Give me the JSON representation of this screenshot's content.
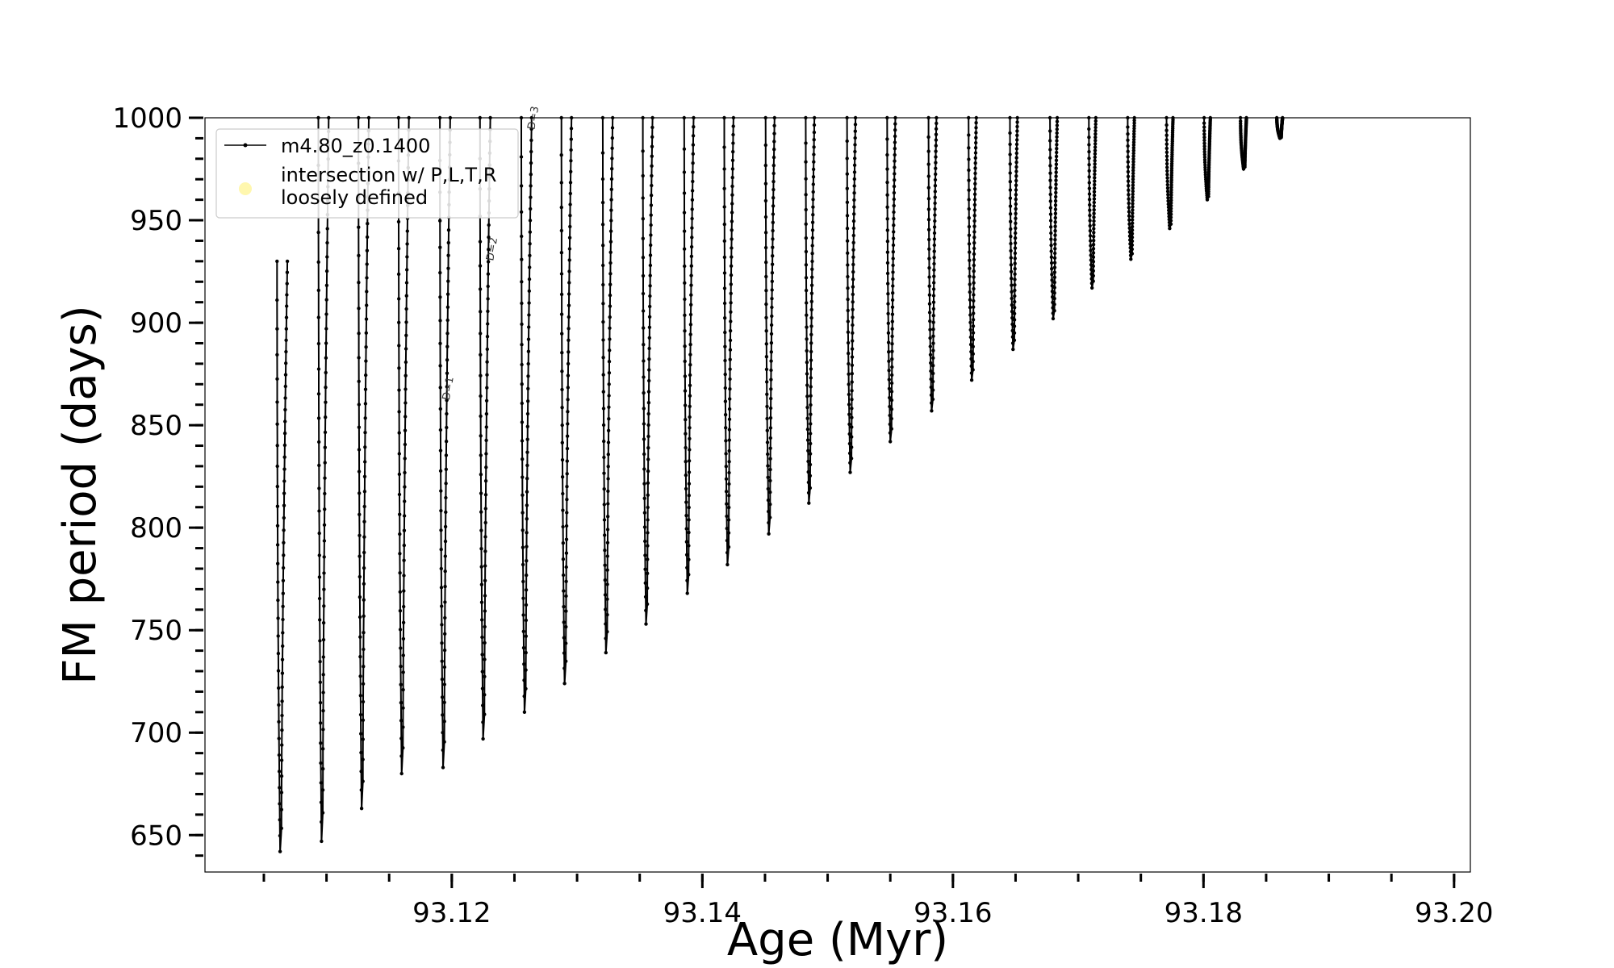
{
  "chart_data": {
    "type": "line",
    "title": "",
    "xlabel": "Age (Myr)",
    "ylabel": "FM period (days)",
    "xlim": [
      93.1003,
      93.2013
    ],
    "ylim": [
      632,
      1000
    ],
    "xticks": [
      93.12,
      93.14,
      93.16,
      93.18,
      93.2
    ],
    "xtick_labels": [
      "93.12",
      "93.14",
      "93.16",
      "93.18",
      "93.20"
    ],
    "xminor_step": 0.005,
    "yticks": [
      650,
      700,
      750,
      800,
      850,
      900,
      950,
      1000
    ],
    "ytick_labels": [
      "650",
      "700",
      "750",
      "800",
      "850",
      "900",
      "950",
      "1000"
    ],
    "yminor_step": 10,
    "grid": false,
    "legend": {
      "placement": "top-left",
      "entries": [
        {
          "label": "m4.80_z0.1400",
          "marker": "line-with-dots",
          "color": "#000000"
        },
        {
          "label_lines": [
            "intersection w/ P,L,T,R",
            "loosely defined"
          ],
          "marker": "circle",
          "color": "#fff59a"
        }
      ]
    },
    "series": [
      {
        "name": "m4.80_z0.1400",
        "color": "#000000",
        "style": "line-with-dots",
        "loops": [
          {
            "age": 93.1063,
            "min_period": 642,
            "max_period": 930
          },
          {
            "age": 93.1096,
            "min_period": 647,
            "max_period": 1000
          },
          {
            "age": 93.1128,
            "min_period": 663,
            "max_period": 1000
          },
          {
            "age": 93.116,
            "min_period": 680,
            "max_period": 1000
          },
          {
            "age": 93.1193,
            "min_period": 683,
            "max_period": 1000
          },
          {
            "age": 93.1225,
            "min_period": 697,
            "max_period": 1000
          },
          {
            "age": 93.1258,
            "min_period": 710,
            "max_period": 1000
          },
          {
            "age": 93.129,
            "min_period": 724,
            "max_period": 1000
          },
          {
            "age": 93.1323,
            "min_period": 739,
            "max_period": 1000
          },
          {
            "age": 93.1355,
            "min_period": 753,
            "max_period": 1000
          },
          {
            "age": 93.1388,
            "min_period": 768,
            "max_period": 1000
          },
          {
            "age": 93.142,
            "min_period": 782,
            "max_period": 1000
          },
          {
            "age": 93.1453,
            "min_period": 797,
            "max_period": 1000
          },
          {
            "age": 93.1485,
            "min_period": 812,
            "max_period": 1000
          },
          {
            "age": 93.1518,
            "min_period": 827,
            "max_period": 1000
          },
          {
            "age": 93.155,
            "min_period": 842,
            "max_period": 1000
          },
          {
            "age": 93.1583,
            "min_period": 857,
            "max_period": 1000
          },
          {
            "age": 93.1615,
            "min_period": 872,
            "max_period": 1000
          },
          {
            "age": 93.1648,
            "min_period": 887,
            "max_period": 1000
          },
          {
            "age": 93.168,
            "min_period": 902,
            "max_period": 1000
          },
          {
            "age": 93.1711,
            "min_period": 917,
            "max_period": 1000
          },
          {
            "age": 93.1742,
            "min_period": 931,
            "max_period": 1000
          },
          {
            "age": 93.1773,
            "min_period": 946,
            "max_period": 1000
          },
          {
            "age": 93.1803,
            "min_period": 960,
            "max_period": 1000
          },
          {
            "age": 93.1832,
            "min_period": 975,
            "max_period": 1000
          },
          {
            "age": 93.1861,
            "min_period": 990,
            "max_period": 1000
          }
        ]
      }
    ],
    "annotations": [
      {
        "text": "D=1",
        "x": 93.1198,
        "y": 862
      },
      {
        "text": "D=2",
        "x": 93.1233,
        "y": 930
      },
      {
        "text": "D=3",
        "x": 93.1266,
        "y": 994
      }
    ]
  }
}
